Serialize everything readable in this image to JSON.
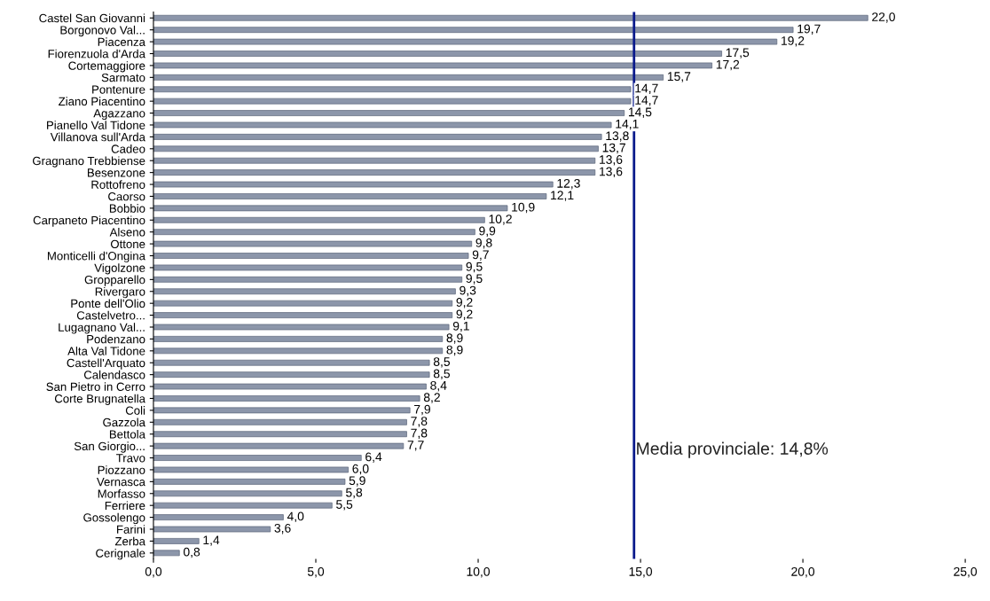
{
  "chart_data": {
    "type": "bar",
    "orientation": "horizontal",
    "categories": [
      "Castel San Giovanni",
      "Borgonovo Val...",
      "Piacenza",
      "Fiorenzuola d'Arda",
      "Cortemaggiore",
      "Sarmato",
      "Pontenure",
      "Ziano Piacentino",
      "Agazzano",
      "Pianello Val Tidone",
      "Villanova sull'Arda",
      "Cadeo",
      "Gragnano Trebbiense",
      "Besenzone",
      "Rottofreno",
      "Caorso",
      "Bobbio",
      "Carpaneto Piacentino",
      "Alseno",
      "Ottone",
      "Monticelli d'Ongina",
      "Vigolzone",
      "Gropparello",
      "Rivergaro",
      "Ponte dell'Olio",
      "Castelvetro...",
      "Lugagnano Val...",
      "Podenzano",
      "Alta Val Tidone",
      "Castell'Arquato",
      "Calendasco",
      "San Pietro in Cerro",
      "Corte Brugnatella",
      "Coli",
      "Gazzola",
      "Bettola",
      "San Giorgio...",
      "Travo",
      "Piozzano",
      "Vernasca",
      "Morfasso",
      "Ferriere",
      "Gossolengo",
      "Farini",
      "Zerba",
      "Cerignale"
    ],
    "values": [
      22.0,
      19.7,
      19.2,
      17.5,
      17.2,
      15.7,
      14.7,
      14.7,
      14.5,
      14.1,
      13.8,
      13.7,
      13.6,
      13.6,
      12.3,
      12.1,
      10.9,
      10.2,
      9.9,
      9.8,
      9.7,
      9.5,
      9.5,
      9.3,
      9.2,
      9.2,
      9.1,
      8.9,
      8.9,
      8.5,
      8.5,
      8.4,
      8.2,
      7.9,
      7.8,
      7.8,
      7.7,
      6.4,
      6.0,
      5.9,
      5.8,
      5.5,
      4.0,
      3.6,
      1.4,
      0.8
    ],
    "value_labels": [
      "22,0",
      "19,7",
      "19,2",
      "17,5",
      "17,2",
      "15,7",
      "14,7",
      "14,7",
      "14,5",
      "14,1",
      "13,8",
      "13,7",
      "13,6",
      "13,6",
      "12,3",
      "12,1",
      "10,9",
      "10,2",
      "9,9",
      "9,8",
      "9,7",
      "9,5",
      "9,5",
      "9,3",
      "9,2",
      "9,2",
      "9,1",
      "8,9",
      "8,9",
      "8,5",
      "8,5",
      "8,4",
      "8,2",
      "7,9",
      "7,8",
      "7,8",
      "7,7",
      "6,4",
      "6,0",
      "5,9",
      "5,8",
      "5,5",
      "4,0",
      "3,6",
      "1,4",
      "0,8"
    ],
    "color": "#8c96aa",
    "xlim": [
      0,
      25
    ],
    "xticks": [
      {
        "value": 0,
        "label": "0,0"
      },
      {
        "value": 5,
        "label": "5,0"
      },
      {
        "value": 10,
        "label": "10,0"
      },
      {
        "value": 15,
        "label": "15,0"
      },
      {
        "value": 20,
        "label": "20,0"
      },
      {
        "value": 25,
        "label": "25,0"
      }
    ],
    "ref_lines": [
      {
        "axis": "x",
        "value": 14.8,
        "label": "Media provinciale: 14,8%",
        "color": "#0a1a8c"
      }
    ],
    "grid": false,
    "legend": false
  }
}
